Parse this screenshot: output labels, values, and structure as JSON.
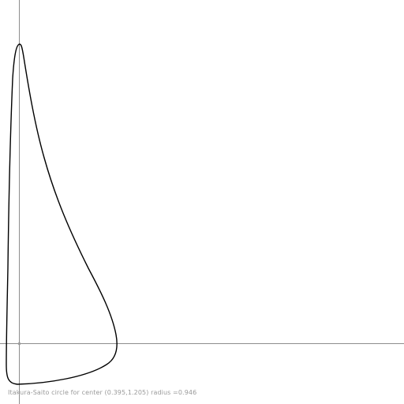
{
  "caption": "Itakura-Saito circle for center (0.395,1.205) radius =0.946",
  "colors": {
    "background": "#ffffff",
    "axis": "#8c8c8c",
    "origin_marker": "#9c9c9c",
    "curve": "#000000",
    "caption_text": "#9a9a9a"
  }
}
